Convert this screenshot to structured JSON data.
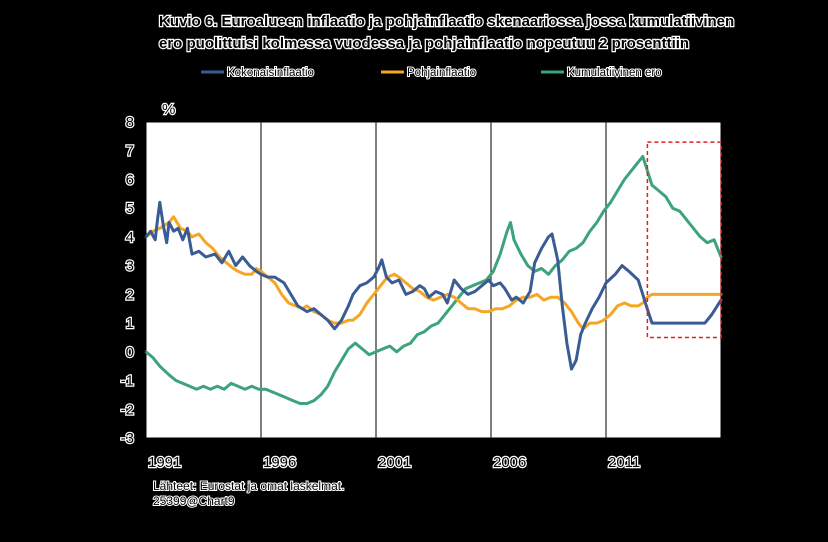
{
  "chart_data": {
    "type": "line",
    "title_line1": "Kuvio 6. Euroalueen inflaatio ja pohjainflaatio skenaariossa jossa kumulatiivinen",
    "title_line2": "ero puolittuisi kolmessa vuodessa ja pohjainflaatio nopeutuu 2 prosenttiin",
    "ylabel": "%",
    "ylim": [
      -3,
      8
    ],
    "yticks": [
      "8",
      "7",
      "6",
      "5",
      "4",
      "3",
      "2",
      "1",
      "0",
      "-1",
      "-2",
      "-3"
    ],
    "xlim": [
      1991.0,
      2016.0
    ],
    "xticks": [
      "1991",
      "1996",
      "2001",
      "2006",
      "2011"
    ],
    "grid": "vertical",
    "legend_position": "top",
    "source_line1": "Lähteet: Eurostat ja omat laskelmat.",
    "source_line2": "25399@Chart9",
    "series": [
      {
        "name": "Kokonaisinflaatio",
        "color": "#3a5c94",
        "points": [
          [
            1991.0,
            4.0
          ],
          [
            1991.2,
            4.2
          ],
          [
            1991.4,
            3.9
          ],
          [
            1991.5,
            4.6
          ],
          [
            1991.6,
            5.2
          ],
          [
            1991.75,
            4.4
          ],
          [
            1991.9,
            3.8
          ],
          [
            1992.0,
            4.5
          ],
          [
            1992.2,
            4.2
          ],
          [
            1992.4,
            4.3
          ],
          [
            1992.6,
            3.9
          ],
          [
            1992.8,
            4.3
          ],
          [
            1993.0,
            3.4
          ],
          [
            1993.3,
            3.5
          ],
          [
            1993.6,
            3.3
          ],
          [
            1994.0,
            3.4
          ],
          [
            1994.3,
            3.1
          ],
          [
            1994.6,
            3.5
          ],
          [
            1994.9,
            3.0
          ],
          [
            1995.2,
            3.3
          ],
          [
            1995.5,
            3.0
          ],
          [
            1995.8,
            2.8
          ],
          [
            1996.0,
            2.7
          ],
          [
            1996.3,
            2.6
          ],
          [
            1996.6,
            2.6
          ],
          [
            1997.0,
            2.4
          ],
          [
            1997.3,
            2.0
          ],
          [
            1997.6,
            1.6
          ],
          [
            1998.0,
            1.4
          ],
          [
            1998.3,
            1.5
          ],
          [
            1998.6,
            1.3
          ],
          [
            1998.9,
            1.1
          ],
          [
            1999.2,
            0.8
          ],
          [
            1999.5,
            1.1
          ],
          [
            1999.8,
            1.6
          ],
          [
            2000.0,
            2.0
          ],
          [
            2000.3,
            2.3
          ],
          [
            2000.6,
            2.4
          ],
          [
            2000.9,
            2.6
          ],
          [
            2001.1,
            2.9
          ],
          [
            2001.25,
            3.2
          ],
          [
            2001.45,
            2.6
          ],
          [
            2001.7,
            2.4
          ],
          [
            2002.0,
            2.5
          ],
          [
            2002.3,
            2.0
          ],
          [
            2002.6,
            2.1
          ],
          [
            2002.9,
            2.3
          ],
          [
            2003.1,
            2.2
          ],
          [
            2003.3,
            1.9
          ],
          [
            2003.6,
            2.1
          ],
          [
            2003.9,
            2.0
          ],
          [
            2004.1,
            1.7
          ],
          [
            2004.4,
            2.5
          ],
          [
            2004.7,
            2.2
          ],
          [
            2005.0,
            2.0
          ],
          [
            2005.3,
            2.1
          ],
          [
            2005.6,
            2.3
          ],
          [
            2005.9,
            2.5
          ],
          [
            2006.1,
            2.3
          ],
          [
            2006.4,
            2.4
          ],
          [
            2006.6,
            2.2
          ],
          [
            2006.9,
            1.8
          ],
          [
            2007.1,
            1.9
          ],
          [
            2007.4,
            1.7
          ],
          [
            2007.7,
            2.1
          ],
          [
            2007.9,
            3.1
          ],
          [
            2008.2,
            3.6
          ],
          [
            2008.5,
            4.0
          ],
          [
            2008.65,
            4.1
          ],
          [
            2008.9,
            3.2
          ],
          [
            2009.1,
            1.6
          ],
          [
            2009.3,
            0.3
          ],
          [
            2009.5,
            -0.6
          ],
          [
            2009.7,
            -0.3
          ],
          [
            2009.9,
            0.6
          ],
          [
            2010.1,
            1.0
          ],
          [
            2010.4,
            1.5
          ],
          [
            2010.7,
            1.9
          ],
          [
            2011.0,
            2.4
          ],
          [
            2011.4,
            2.7
          ],
          [
            2011.7,
            3.0
          ],
          [
            2012.0,
            2.8
          ],
          [
            2012.4,
            2.5
          ],
          [
            2012.6,
            2.0
          ],
          [
            2012.75,
            1.6
          ],
          [
            2013.0,
            1.0
          ],
          [
            2013.5,
            1.0
          ],
          [
            2014.0,
            1.0
          ],
          [
            2014.5,
            1.0
          ],
          [
            2015.0,
            1.0
          ],
          [
            2015.3,
            1.0
          ],
          [
            2015.6,
            1.3
          ],
          [
            2016.0,
            1.8
          ]
        ]
      },
      {
        "name": "Pohjainflaatio",
        "color": "#f5a623",
        "points": [
          [
            1991.0,
            4.0
          ],
          [
            1991.3,
            4.2
          ],
          [
            1991.6,
            4.3
          ],
          [
            1992.0,
            4.5
          ],
          [
            1992.2,
            4.7
          ],
          [
            1992.5,
            4.3
          ],
          [
            1992.8,
            4.2
          ],
          [
            1993.0,
            4.0
          ],
          [
            1993.3,
            4.1
          ],
          [
            1993.6,
            3.8
          ],
          [
            1993.9,
            3.6
          ],
          [
            1994.2,
            3.3
          ],
          [
            1994.5,
            3.1
          ],
          [
            1994.8,
            2.9
          ],
          [
            1995.0,
            2.8
          ],
          [
            1995.3,
            2.7
          ],
          [
            1995.6,
            2.7
          ],
          [
            1995.8,
            2.9
          ],
          [
            1996.0,
            2.8
          ],
          [
            1996.3,
            2.6
          ],
          [
            1996.6,
            2.4
          ],
          [
            1996.9,
            2.0
          ],
          [
            1997.2,
            1.7
          ],
          [
            1997.5,
            1.6
          ],
          [
            1997.8,
            1.5
          ],
          [
            1998.0,
            1.6
          ],
          [
            1998.3,
            1.4
          ],
          [
            1998.6,
            1.3
          ],
          [
            1998.9,
            1.1
          ],
          [
            1999.2,
            1.0
          ],
          [
            1999.5,
            1.0
          ],
          [
            1999.8,
            1.1
          ],
          [
            2000.0,
            1.1
          ],
          [
            2000.3,
            1.3
          ],
          [
            2000.6,
            1.7
          ],
          [
            2000.9,
            2.0
          ],
          [
            2001.2,
            2.3
          ],
          [
            2001.5,
            2.6
          ],
          [
            2001.8,
            2.7
          ],
          [
            2002.0,
            2.6
          ],
          [
            2002.3,
            2.4
          ],
          [
            2002.6,
            2.2
          ],
          [
            2002.9,
            2.1
          ],
          [
            2003.2,
            1.9
          ],
          [
            2003.5,
            1.8
          ],
          [
            2003.8,
            1.9
          ],
          [
            2004.1,
            2.0
          ],
          [
            2004.4,
            1.9
          ],
          [
            2004.7,
            1.7
          ],
          [
            2005.0,
            1.5
          ],
          [
            2005.3,
            1.5
          ],
          [
            2005.6,
            1.4
          ],
          [
            2005.9,
            1.4
          ],
          [
            2006.2,
            1.5
          ],
          [
            2006.5,
            1.5
          ],
          [
            2006.8,
            1.6
          ],
          [
            2007.1,
            1.8
          ],
          [
            2007.4,
            1.9
          ],
          [
            2007.7,
            1.9
          ],
          [
            2008.0,
            2.0
          ],
          [
            2008.3,
            1.8
          ],
          [
            2008.6,
            1.9
          ],
          [
            2008.9,
            1.9
          ],
          [
            2009.2,
            1.7
          ],
          [
            2009.5,
            1.4
          ],
          [
            2009.8,
            1.0
          ],
          [
            2010.0,
            0.8
          ],
          [
            2010.3,
            1.0
          ],
          [
            2010.6,
            1.0
          ],
          [
            2010.9,
            1.1
          ],
          [
            2011.2,
            1.3
          ],
          [
            2011.5,
            1.6
          ],
          [
            2011.8,
            1.7
          ],
          [
            2012.1,
            1.6
          ],
          [
            2012.4,
            1.6
          ],
          [
            2012.6,
            1.7
          ],
          [
            2012.8,
            1.9
          ],
          [
            2013.0,
            2.0
          ],
          [
            2013.5,
            2.0
          ],
          [
            2014.0,
            2.0
          ],
          [
            2015.0,
            2.0
          ],
          [
            2016.0,
            2.0
          ]
        ]
      },
      {
        "name": "Kumulatiivinen ero",
        "color": "#3da37a",
        "points": [
          [
            1991.0,
            0.0
          ],
          [
            1991.3,
            -0.2
          ],
          [
            1991.6,
            -0.5
          ],
          [
            1992.0,
            -0.8
          ],
          [
            1992.3,
            -1.0
          ],
          [
            1992.6,
            -1.1
          ],
          [
            1992.9,
            -1.2
          ],
          [
            1993.2,
            -1.3
          ],
          [
            1993.5,
            -1.2
          ],
          [
            1993.8,
            -1.3
          ],
          [
            1994.1,
            -1.2
          ],
          [
            1994.4,
            -1.3
          ],
          [
            1994.7,
            -1.1
          ],
          [
            1995.0,
            -1.2
          ],
          [
            1995.3,
            -1.3
          ],
          [
            1995.6,
            -1.2
          ],
          [
            1995.9,
            -1.3
          ],
          [
            1996.2,
            -1.3
          ],
          [
            1996.5,
            -1.4
          ],
          [
            1996.8,
            -1.5
          ],
          [
            1997.1,
            -1.6
          ],
          [
            1997.4,
            -1.7
          ],
          [
            1997.7,
            -1.8
          ],
          [
            1998.0,
            -1.8
          ],
          [
            1998.3,
            -1.7
          ],
          [
            1998.6,
            -1.5
          ],
          [
            1998.9,
            -1.2
          ],
          [
            1999.2,
            -0.7
          ],
          [
            1999.5,
            -0.3
          ],
          [
            1999.8,
            0.1
          ],
          [
            2000.1,
            0.3
          ],
          [
            2000.4,
            0.1
          ],
          [
            2000.7,
            -0.1
          ],
          [
            2001.0,
            0.0
          ],
          [
            2001.3,
            0.1
          ],
          [
            2001.6,
            0.2
          ],
          [
            2001.9,
            0.0
          ],
          [
            2002.2,
            0.2
          ],
          [
            2002.5,
            0.3
          ],
          [
            2002.8,
            0.6
          ],
          [
            2003.1,
            0.7
          ],
          [
            2003.4,
            0.9
          ],
          [
            2003.7,
            1.0
          ],
          [
            2004.0,
            1.3
          ],
          [
            2004.3,
            1.6
          ],
          [
            2004.6,
            1.9
          ],
          [
            2004.9,
            2.2
          ],
          [
            2005.2,
            2.3
          ],
          [
            2005.5,
            2.4
          ],
          [
            2005.8,
            2.5
          ],
          [
            2006.1,
            2.8
          ],
          [
            2006.4,
            3.4
          ],
          [
            2006.7,
            4.2
          ],
          [
            2006.85,
            4.5
          ],
          [
            2007.0,
            3.9
          ],
          [
            2007.3,
            3.4
          ],
          [
            2007.6,
            3.0
          ],
          [
            2007.9,
            2.8
          ],
          [
            2008.2,
            2.9
          ],
          [
            2008.5,
            2.7
          ],
          [
            2008.8,
            3.0
          ],
          [
            2009.1,
            3.2
          ],
          [
            2009.4,
            3.5
          ],
          [
            2009.7,
            3.6
          ],
          [
            2010.0,
            3.8
          ],
          [
            2010.3,
            4.2
          ],
          [
            2010.6,
            4.5
          ],
          [
            2010.9,
            4.9
          ],
          [
            2011.2,
            5.2
          ],
          [
            2011.5,
            5.6
          ],
          [
            2011.8,
            6.0
          ],
          [
            2012.1,
            6.3
          ],
          [
            2012.4,
            6.6
          ],
          [
            2012.6,
            6.8
          ],
          [
            2012.8,
            6.3
          ],
          [
            2013.0,
            5.8
          ],
          [
            2013.3,
            5.6
          ],
          [
            2013.6,
            5.4
          ],
          [
            2013.9,
            5.0
          ],
          [
            2014.2,
            4.9
          ],
          [
            2014.5,
            4.6
          ],
          [
            2014.8,
            4.3
          ],
          [
            2015.1,
            4.0
          ],
          [
            2015.4,
            3.8
          ],
          [
            2015.7,
            3.9
          ],
          [
            2016.0,
            3.3
          ]
        ]
      }
    ],
    "highlight": {
      "x_from": 2012.8,
      "x_to": 2016.0,
      "y_from": 0.5,
      "y_to": 7.3,
      "color": "#e02020"
    }
  }
}
